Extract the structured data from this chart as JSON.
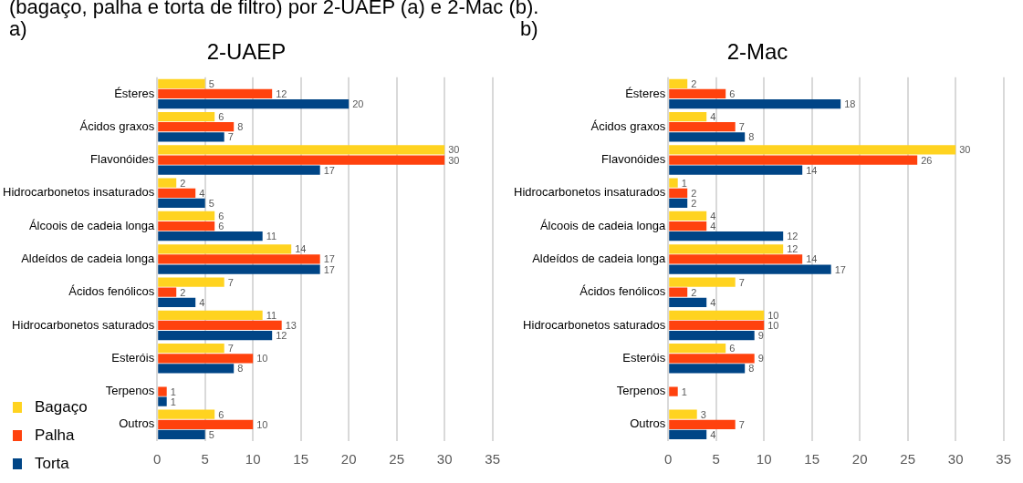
{
  "chart_data": [
    {
      "type": "bar",
      "orientation": "horizontal",
      "title": "2-UAEP",
      "annotations": [
        "(bagaço, palha e torta de filtro) por 2-UAEP (a) e 2-Mac (b).",
        "a)"
      ],
      "categories": [
        "Ésteres",
        "Ácidos graxos",
        "Flavonóides",
        "Hidrocarbonetos insaturados",
        "Álcoois de cadeia longa",
        "Aldeídos de cadeia longa",
        "Ácidos fenólicos",
        "Hidrocarbonetos saturados",
        "Esteróis",
        "Terpenos",
        "Outros"
      ],
      "series": [
        {
          "name": "Bagaço",
          "color": "#ffd320",
          "values": [
            5,
            6,
            30,
            2,
            6,
            14,
            7,
            11,
            7,
            null,
            6
          ]
        },
        {
          "name": "Palha",
          "color": "#ff420e",
          "values": [
            12,
            8,
            30,
            4,
            6,
            17,
            2,
            13,
            10,
            1,
            10
          ]
        },
        {
          "name": "Torta",
          "color": "#004586",
          "values": [
            20,
            7,
            17,
            5,
            11,
            17,
            4,
            12,
            8,
            1,
            5
          ]
        }
      ],
      "xlim": [
        0,
        35
      ],
      "xticks": [
        0,
        5,
        10,
        15,
        20,
        25,
        30,
        35
      ],
      "grid": "x",
      "legend": "bottom left",
      "data_labels": true
    },
    {
      "type": "bar",
      "orientation": "horizontal",
      "title": "2-Mac",
      "annotations": [
        "b)"
      ],
      "categories": [
        "Ésteres",
        "Ácidos graxos",
        "Flavonóides",
        "Hidrocarbonetos insaturados",
        "Álcoois de cadeia longa",
        "Aldeídos de cadeia longa",
        "Ácidos fenólicos",
        "Hidrocarbonetos saturados",
        "Esteróis",
        "Terpenos",
        "Outros"
      ],
      "series": [
        {
          "color": "#ffd320",
          "values": [
            2,
            4,
            30,
            1,
            4,
            12,
            7,
            10,
            6,
            null,
            3
          ]
        },
        {
          "color": "#ff420e",
          "values": [
            6,
            7,
            26,
            2,
            4,
            14,
            2,
            10,
            9,
            1,
            7
          ]
        },
        {
          "color": "#004586",
          "values": [
            18,
            8,
            14,
            2,
            12,
            17,
            4,
            9,
            8,
            null,
            4
          ]
        }
      ],
      "xlim": [
        0,
        35
      ],
      "xticks": [
        0,
        5,
        10,
        15,
        20,
        25,
        30,
        35
      ],
      "grid": "x",
      "legend": false,
      "data_labels": true
    }
  ]
}
